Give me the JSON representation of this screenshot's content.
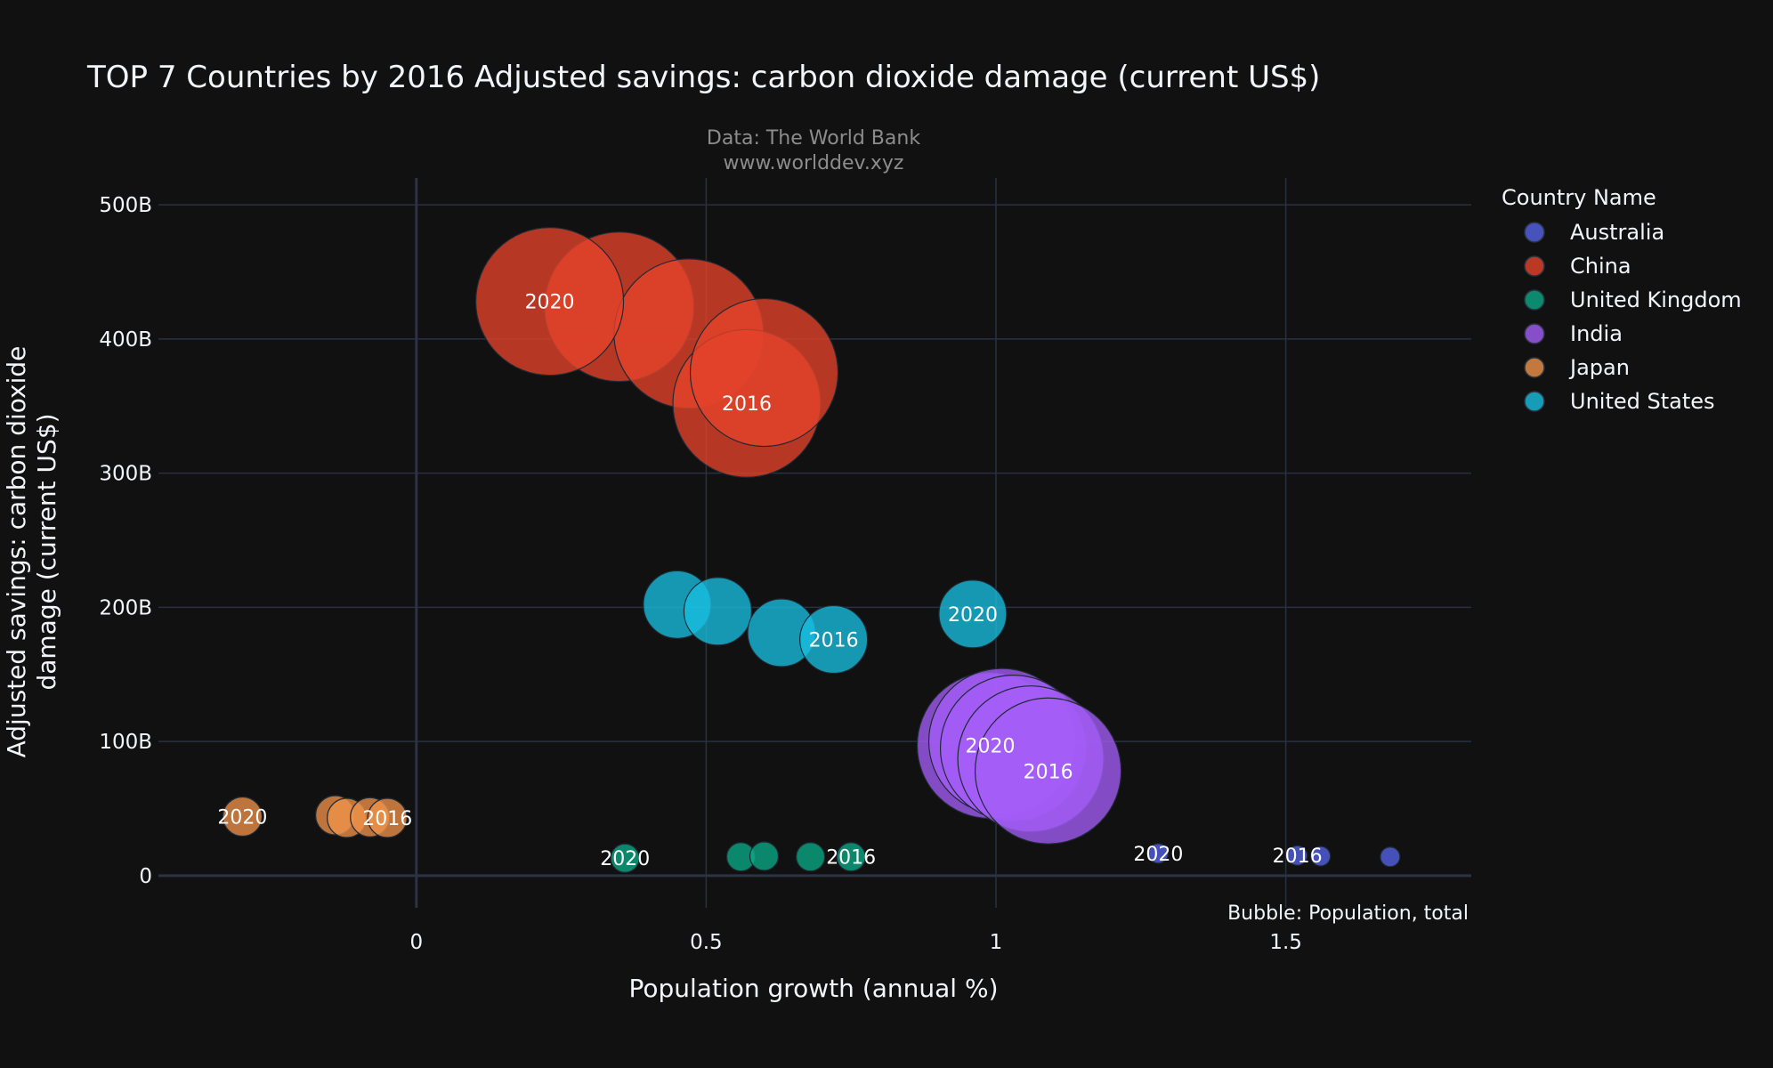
{
  "chart_data": {
    "type": "scatter",
    "title": "TOP 7 Countries by 2016 Adjusted savings: carbon dioxide damage (current US$)",
    "subtitle_lines": [
      "Data: The World Bank",
      "www.worlddev.xyz"
    ],
    "xlabel": "Population growth (annual %)",
    "ylabel_lines": [
      "Adjusted savings: carbon dioxide",
      "damage (current US$)"
    ],
    "bubble_note": "Bubble: Population, total",
    "xlim": [
      -0.445,
      1.82
    ],
    "ylim": [
      -24,
      520
    ],
    "x_ticks": [
      {
        "v": 0,
        "label": "0"
      },
      {
        "v": 0.5,
        "label": "0.5"
      },
      {
        "v": 1,
        "label": "1"
      },
      {
        "v": 1.5,
        "label": "1.5"
      }
    ],
    "y_ticks": [
      {
        "v": 0,
        "label": "0"
      },
      {
        "v": 100,
        "label": "100B"
      },
      {
        "v": 200,
        "label": "200B"
      },
      {
        "v": 300,
        "label": "300B"
      },
      {
        "v": 400,
        "label": "400B"
      },
      {
        "v": 500,
        "label": "500B"
      }
    ],
    "grid": true,
    "legend": {
      "title": "Country Name",
      "placement": "right"
    },
    "y_units": "billions of current US$",
    "series": [
      {
        "name": "Australia",
        "color": "#5563e8",
        "points": [
          {
            "x": 1.68,
            "y": 14,
            "r": 11,
            "year": ""
          },
          {
            "x": 1.56,
            "y": 14.5,
            "r": 11,
            "year": ""
          },
          {
            "x": 1.52,
            "y": 15,
            "r": 11,
            "year": "2016"
          },
          {
            "x": 1.28,
            "y": 16.5,
            "r": 11,
            "year": "2020"
          }
        ]
      },
      {
        "name": "China",
        "color": "#e5432a",
        "points": [
          {
            "x": 0.23,
            "y": 428,
            "r": 83,
            "year": "2020"
          },
          {
            "x": 0.35,
            "y": 424,
            "r": 84,
            "year": ""
          },
          {
            "x": 0.47,
            "y": 404,
            "r": 84,
            "year": ""
          },
          {
            "x": 0.57,
            "y": 352,
            "r": 83,
            "year": "2016"
          },
          {
            "x": 0.6,
            "y": 375,
            "r": 83,
            "year": ""
          }
        ]
      },
      {
        "name": "United Kingdom",
        "color": "#0aa985",
        "points": [
          {
            "x": 0.36,
            "y": 13,
            "r": 16,
            "year": "2020"
          },
          {
            "x": 0.56,
            "y": 14,
            "r": 16,
            "year": ""
          },
          {
            "x": 0.6,
            "y": 14.5,
            "r": 16,
            "year": ""
          },
          {
            "x": 0.68,
            "y": 14,
            "r": 16,
            "year": ""
          },
          {
            "x": 0.75,
            "y": 14,
            "r": 16,
            "year": "2016"
          }
        ]
      },
      {
        "name": "India",
        "color": "#a45ef7",
        "points": [
          {
            "x": 0.99,
            "y": 97,
            "r": 82,
            "year": "2020"
          },
          {
            "x": 1.01,
            "y": 100,
            "r": 82,
            "year": ""
          },
          {
            "x": 1.03,
            "y": 95,
            "r": 82,
            "year": ""
          },
          {
            "x": 1.06,
            "y": 87,
            "r": 82,
            "year": ""
          },
          {
            "x": 1.09,
            "y": 78,
            "r": 82,
            "year": "2016"
          }
        ]
      },
      {
        "name": "Japan",
        "color": "#f0924a",
        "points": [
          {
            "x": -0.3,
            "y": 44,
            "r": 22,
            "year": "2020"
          },
          {
            "x": -0.14,
            "y": 45,
            "r": 22,
            "year": ""
          },
          {
            "x": -0.12,
            "y": 43,
            "r": 22,
            "year": ""
          },
          {
            "x": -0.08,
            "y": 43.5,
            "r": 22,
            "year": ""
          },
          {
            "x": -0.05,
            "y": 43,
            "r": 22,
            "year": "2016"
          }
        ]
      },
      {
        "name": "United States",
        "color": "#18bfe0",
        "points": [
          {
            "x": 0.96,
            "y": 195,
            "r": 38,
            "year": "2020"
          },
          {
            "x": 0.45,
            "y": 202,
            "r": 38,
            "year": ""
          },
          {
            "x": 0.52,
            "y": 197,
            "r": 38,
            "year": ""
          },
          {
            "x": 0.63,
            "y": 181,
            "r": 38,
            "year": ""
          },
          {
            "x": 0.72,
            "y": 176,
            "r": 38,
            "year": "2016"
          }
        ]
      }
    ]
  }
}
